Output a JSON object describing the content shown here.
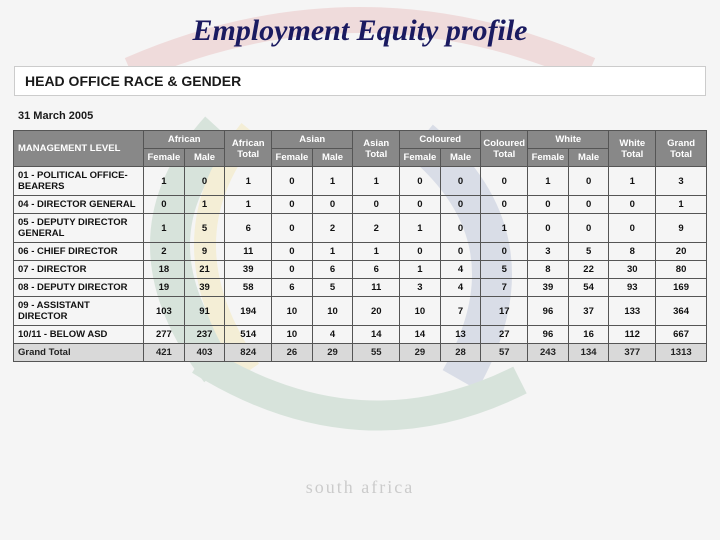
{
  "title": "Employment Equity profile",
  "subtitle": "HEAD OFFICE RACE & GENDER",
  "date": "31 March 2005",
  "footer_watermark": "south africa",
  "table": {
    "header_top": {
      "level": "MANAGEMENT LEVEL",
      "groups": [
        "African",
        "African Total",
        "Asian",
        "Asian Total",
        "Coloured",
        "Coloured Total",
        "White",
        "White Total",
        "Grand Total"
      ]
    },
    "header_sub": [
      "Female",
      "Male"
    ],
    "rows": [
      {
        "label": "01 - POLITICAL OFFICE-BEARERS",
        "cells": [
          "1",
          "0",
          "1",
          "0",
          "1",
          "1",
          "0",
          "0",
          "0",
          "1",
          "0",
          "1",
          "3"
        ]
      },
      {
        "label": "04 - DIRECTOR GENERAL",
        "cells": [
          "0",
          "1",
          "1",
          "0",
          "0",
          "0",
          "0",
          "0",
          "0",
          "0",
          "0",
          "0",
          "1"
        ]
      },
      {
        "label": "05 - DEPUTY DIRECTOR GENERAL",
        "cells": [
          "1",
          "5",
          "6",
          "0",
          "2",
          "2",
          "1",
          "0",
          "1",
          "0",
          "0",
          "0",
          "9"
        ]
      },
      {
        "label": "06 - CHIEF DIRECTOR",
        "cells": [
          "2",
          "9",
          "11",
          "0",
          "1",
          "1",
          "0",
          "0",
          "0",
          "3",
          "5",
          "8",
          "20"
        ]
      },
      {
        "label": "07 - DIRECTOR",
        "cells": [
          "18",
          "21",
          "39",
          "0",
          "6",
          "6",
          "1",
          "4",
          "5",
          "8",
          "22",
          "30",
          "80"
        ]
      },
      {
        "label": "08 - DEPUTY DIRECTOR",
        "cells": [
          "19",
          "39",
          "58",
          "6",
          "5",
          "11",
          "3",
          "4",
          "7",
          "39",
          "54",
          "93",
          "169"
        ]
      },
      {
        "label": "09 - ASSISTANT DIRECTOR",
        "cells": [
          "103",
          "91",
          "194",
          "10",
          "10",
          "20",
          "10",
          "7",
          "17",
          "96",
          "37",
          "133",
          "364"
        ]
      },
      {
        "label": "10/11 - BELOW ASD",
        "cells": [
          "277",
          "237",
          "514",
          "10",
          "4",
          "14",
          "14",
          "13",
          "27",
          "96",
          "16",
          "112",
          "667"
        ]
      }
    ],
    "grand": {
      "label": "Grand Total",
      "cells": [
        "421",
        "403",
        "824",
        "26",
        "29",
        "55",
        "29",
        "28",
        "57",
        "243",
        "134",
        "377",
        "1313"
      ]
    }
  },
  "colors": {
    "title": "#1a1a60",
    "header_bg": "#888888",
    "header_fg": "#ffffff",
    "grand_bg": "#d9d9d9",
    "border": "#555555"
  }
}
